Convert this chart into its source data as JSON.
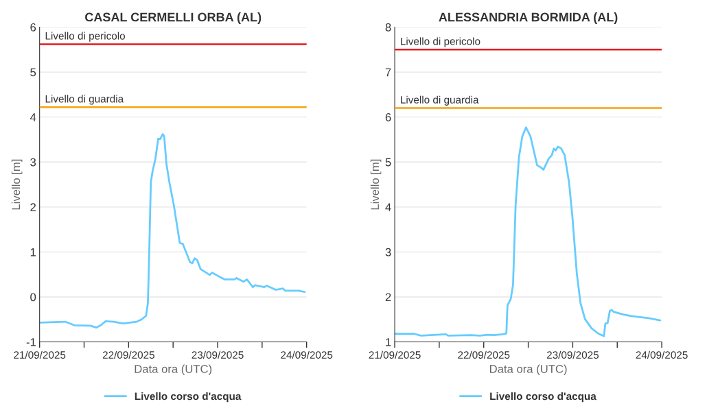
{
  "chart_data": [
    {
      "type": "line",
      "title": "CASAL CERMELLI ORBA (AL)",
      "xlabel": "Data ora (UTC)",
      "ylabel": "Livello [m]",
      "grid": "y",
      "legend": "bottom",
      "marker": "none",
      "line_style": "solid",
      "xlim": [
        "2025-09-21",
        "2025-09-24"
      ],
      "ylim": [
        -1,
        6
      ],
      "yticks": [
        -1,
        0,
        1,
        2,
        3,
        4,
        5,
        6
      ],
      "xticks": [
        {
          "value": "2025-09-21",
          "label": "21/09/2025"
        },
        {
          "value": "2025-09-21T12:00",
          "label": null
        },
        {
          "value": "2025-09-22",
          "label": "22/09/2025"
        },
        {
          "value": "2025-09-22T12:00",
          "label": null
        },
        {
          "value": "2025-09-23",
          "label": "23/09/2025"
        },
        {
          "value": "2025-09-23T12:00",
          "label": null
        },
        {
          "value": "2025-09-24",
          "label": "24/09/2025"
        }
      ],
      "ref_lines": [
        {
          "axis": "y",
          "value": 5.62,
          "label": "Livello di pericolo",
          "color": "#e8191f"
        },
        {
          "axis": "y",
          "value": 4.22,
          "label": "Livello di guardia",
          "color": "#f5a40e"
        }
      ],
      "series": [
        {
          "name": "Livello corso d'acqua",
          "color": "#66ccff",
          "x": [
            "2025-09-21T00:00",
            "2025-09-21T06:54",
            "2025-09-21T09:24",
            "2025-09-21T13:42",
            "2025-09-21T15:18",
            "2025-09-21T16:30",
            "2025-09-21T17:48",
            "2025-09-21T20:00",
            "2025-09-21T22:30",
            "2025-09-22T02:12",
            "2025-09-22T03:30",
            "2025-09-22T04:42",
            "2025-09-22T05:12",
            "2025-09-22T05:30",
            "2025-09-22T06:00",
            "2025-09-22T06:30",
            "2025-09-22T07:12",
            "2025-09-22T08:00",
            "2025-09-22T08:30",
            "2025-09-22T09:12",
            "2025-09-22T09:36",
            "2025-09-22T10:12",
            "2025-09-22T11:00",
            "2025-09-22T12:12",
            "2025-09-22T13:48",
            "2025-09-22T14:36",
            "2025-09-22T16:36",
            "2025-09-22T17:12",
            "2025-09-22T17:48",
            "2025-09-22T18:30",
            "2025-09-22T19:24",
            "2025-09-22T21:54",
            "2025-09-22T22:30",
            "2025-09-23T00:42",
            "2025-09-23T02:00",
            "2025-09-23T04:30",
            "2025-09-23T05:06",
            "2025-09-23T07:00",
            "2025-09-23T07:54",
            "2025-09-23T09:30",
            "2025-09-23T10:06",
            "2025-09-23T12:36",
            "2025-09-23T13:12",
            "2025-09-23T15:42",
            "2025-09-23T17:36",
            "2025-09-23T18:12",
            "2025-09-23T21:54",
            "2025-09-23T23:30"
          ],
          "values": [
            -0.57,
            -0.55,
            -0.63,
            -0.64,
            -0.68,
            -0.63,
            -0.54,
            -0.55,
            -0.59,
            -0.55,
            -0.5,
            -0.42,
            -0.14,
            0.77,
            2.55,
            2.81,
            3.06,
            3.52,
            3.51,
            3.62,
            3.57,
            2.96,
            2.55,
            2.04,
            1.2,
            1.18,
            0.77,
            0.75,
            0.86,
            0.82,
            0.62,
            0.49,
            0.54,
            0.44,
            0.39,
            0.39,
            0.42,
            0.34,
            0.39,
            0.22,
            0.26,
            0.22,
            0.25,
            0.16,
            0.19,
            0.14,
            0.14,
            0.11
          ]
        }
      ]
    },
    {
      "type": "line",
      "title": "ALESSANDRIA BORMIDA (AL)",
      "xlabel": "Data ora (UTC)",
      "ylabel": "Livello [m]",
      "grid": "y",
      "legend": "bottom",
      "marker": "none",
      "line_style": "solid",
      "xlim": [
        "2025-09-21",
        "2025-09-24"
      ],
      "ylim": [
        1,
        8
      ],
      "yticks": [
        1,
        2,
        3,
        4,
        5,
        6,
        7,
        8
      ],
      "xticks": [
        {
          "value": "2025-09-21",
          "label": "21/09/2025"
        },
        {
          "value": "2025-09-21T12:00",
          "label": null
        },
        {
          "value": "2025-09-22",
          "label": "22/09/2025"
        },
        {
          "value": "2025-09-22T12:00",
          "label": null
        },
        {
          "value": "2025-09-23",
          "label": "23/09/2025"
        },
        {
          "value": "2025-09-23T12:00",
          "label": null
        },
        {
          "value": "2025-09-24",
          "label": "24/09/2025"
        }
      ],
      "ref_lines": [
        {
          "axis": "y",
          "value": 7.5,
          "label": "Livello di pericolo",
          "color": "#e8191f"
        },
        {
          "axis": "y",
          "value": 6.2,
          "label": "Livello di guardia",
          "color": "#f5a40e"
        }
      ],
      "series": [
        {
          "name": "Livello corso d'acqua",
          "color": "#66ccff",
          "x": [
            "2025-09-21T00:00",
            "2025-09-21T05:12",
            "2025-09-21T07:06",
            "2025-09-21T13:48",
            "2025-09-21T14:24",
            "2025-09-21T20:36",
            "2025-09-21T23:00",
            "2025-09-22T00:54",
            "2025-09-22T02:42",
            "2025-09-22T05:12",
            "2025-09-22T06:06",
            "2025-09-22T06:24",
            "2025-09-22T07:18",
            "2025-09-22T07:54",
            "2025-09-22T08:36",
            "2025-09-22T09:30",
            "2025-09-22T10:24",
            "2025-09-22T11:24",
            "2025-09-22T12:36",
            "2025-09-22T14:24",
            "2025-09-22T15:24",
            "2025-09-22T16:06",
            "2025-09-22T17:30",
            "2025-09-22T18:24",
            "2025-09-22T18:54",
            "2025-09-22T19:24",
            "2025-09-22T20:00",
            "2025-09-22T20:48",
            "2025-09-22T21:48",
            "2025-09-22T23:00",
            "2025-09-22T23:54",
            "2025-09-23T01:06",
            "2025-09-23T02:06",
            "2025-09-23T03:18",
            "2025-09-23T05:06",
            "2025-09-23T07:00",
            "2025-09-23T08:24",
            "2025-09-23T08:48",
            "2025-09-23T09:24",
            "2025-09-23T10:00",
            "2025-09-23T10:30",
            "2025-09-23T11:00",
            "2025-09-23T13:42",
            "2025-09-23T15:36",
            "2025-09-23T17:24",
            "2025-09-23T20:30",
            "2025-09-23T23:36"
          ],
          "values": [
            1.18,
            1.18,
            1.14,
            1.17,
            1.14,
            1.15,
            1.14,
            1.16,
            1.15,
            1.17,
            1.19,
            1.81,
            1.96,
            2.27,
            4.05,
            5.11,
            5.57,
            5.77,
            5.57,
            4.93,
            4.88,
            4.83,
            5.07,
            5.16,
            5.3,
            5.26,
            5.34,
            5.31,
            5.16,
            4.55,
            3.79,
            2.52,
            1.86,
            1.51,
            1.3,
            1.18,
            1.13,
            1.41,
            1.42,
            1.69,
            1.71,
            1.67,
            1.61,
            1.58,
            1.56,
            1.53,
            1.48
          ]
        }
      ]
    }
  ]
}
